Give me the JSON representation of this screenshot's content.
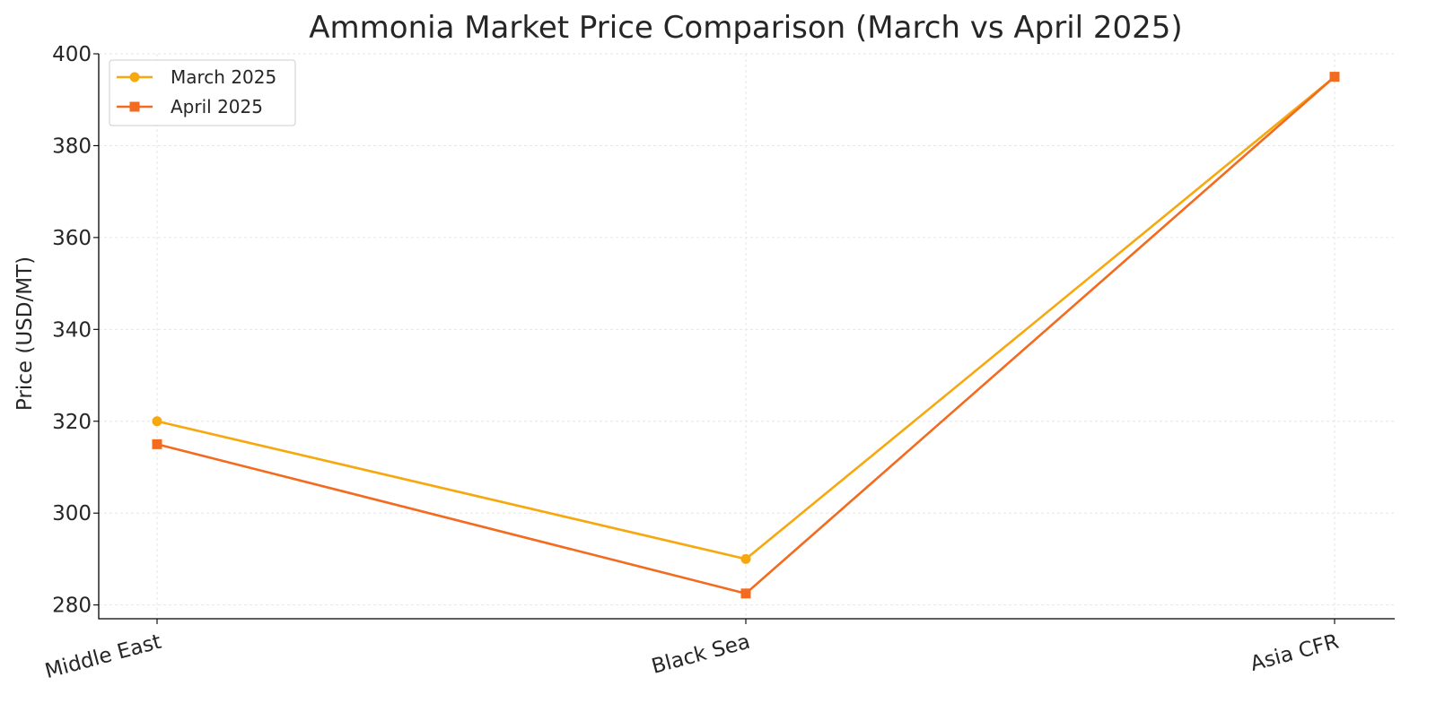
{
  "chart_data": {
    "type": "line",
    "title": "Ammonia Market Price Comparison (March vs April 2025)",
    "xlabel": "",
    "ylabel": "Price (USD/MT)",
    "categories": [
      "Middle East",
      "Black Sea",
      "Asia CFR"
    ],
    "ylim": [
      277,
      400
    ],
    "yticks": [
      280,
      300,
      320,
      340,
      360,
      380,
      400
    ],
    "grid": true,
    "legend_position": "top-left",
    "series": [
      {
        "name": "March 2025",
        "values": [
          320,
          290,
          395
        ],
        "color": "#f6a80e",
        "marker": "circle"
      },
      {
        "name": "April 2025",
        "values": [
          315,
          282.5,
          395
        ],
        "color": "#f26b1f",
        "marker": "square"
      }
    ]
  }
}
